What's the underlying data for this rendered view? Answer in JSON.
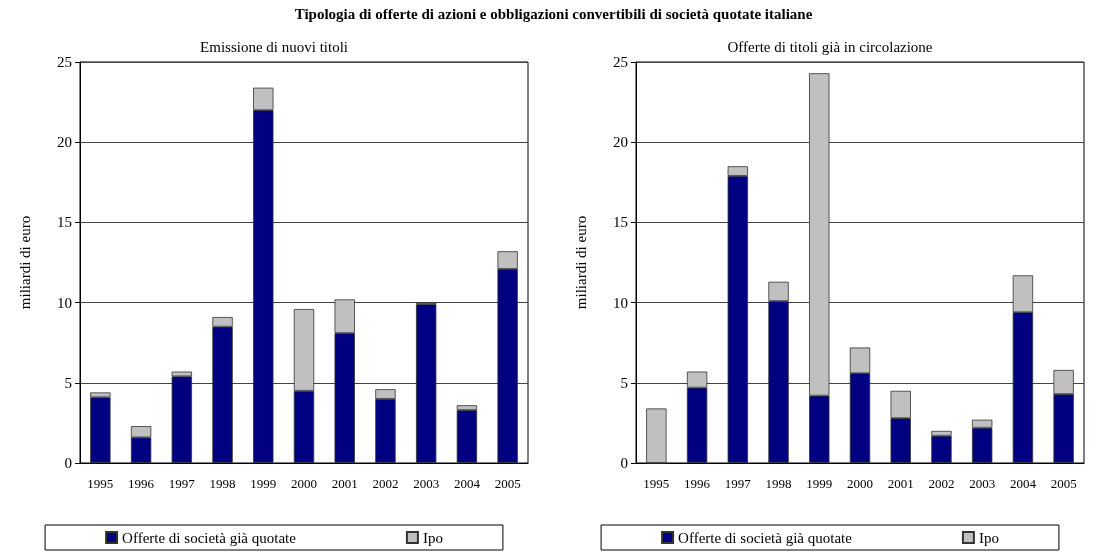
{
  "chart_data": [
    {
      "type": "bar",
      "title": "Tipologia di offerte di azioni e obbligazioni convertibili di società quotate italiane",
      "subtitle": "Emissione di nuovi titoli",
      "ylabel": "miliardi di euro",
      "categories": [
        "1995",
        "1996",
        "1997",
        "1998",
        "1999",
        "2000",
        "2001",
        "2002",
        "2003",
        "2004",
        "2005"
      ],
      "stacked": true,
      "ylim": [
        0,
        25
      ],
      "yticks": [
        0,
        5,
        10,
        15,
        20,
        25
      ],
      "grid": "y",
      "legend": "bottom",
      "series": [
        {
          "name": "Offerte di società già quotate",
          "color": "#000080",
          "values": [
            4.1,
            1.6,
            5.4,
            8.5,
            22.0,
            4.5,
            8.1,
            4.0,
            9.9,
            3.3,
            12.1
          ]
        },
        {
          "name": "Ipo",
          "color": "#c0c0c0",
          "values": [
            0.3,
            0.7,
            0.3,
            0.6,
            1.4,
            5.1,
            2.1,
            0.6,
            0.1,
            0.3,
            1.1
          ]
        }
      ]
    },
    {
      "type": "bar",
      "subtitle": "Offerte di titoli già in circolazione",
      "ylabel": "miliardi di euro",
      "categories": [
        "1995",
        "1996",
        "1997",
        "1998",
        "1999",
        "2000",
        "2001",
        "2002",
        "2003",
        "2004",
        "2005"
      ],
      "stacked": true,
      "ylim": [
        0,
        25
      ],
      "yticks": [
        0,
        5,
        10,
        15,
        20,
        25
      ],
      "grid": "y",
      "legend": "bottom",
      "series": [
        {
          "name": "Offerte di società già quotate",
          "color": "#000080",
          "values": [
            0,
            4.7,
            17.9,
            10.1,
            4.2,
            5.6,
            2.8,
            1.7,
            2.2,
            9.4,
            4.3
          ]
        },
        {
          "name": "Ipo",
          "color": "#c0c0c0",
          "values": [
            3.4,
            1.0,
            0.6,
            1.2,
            20.1,
            1.6,
            1.7,
            0.3,
            0.5,
            2.3,
            1.5
          ]
        }
      ]
    }
  ]
}
